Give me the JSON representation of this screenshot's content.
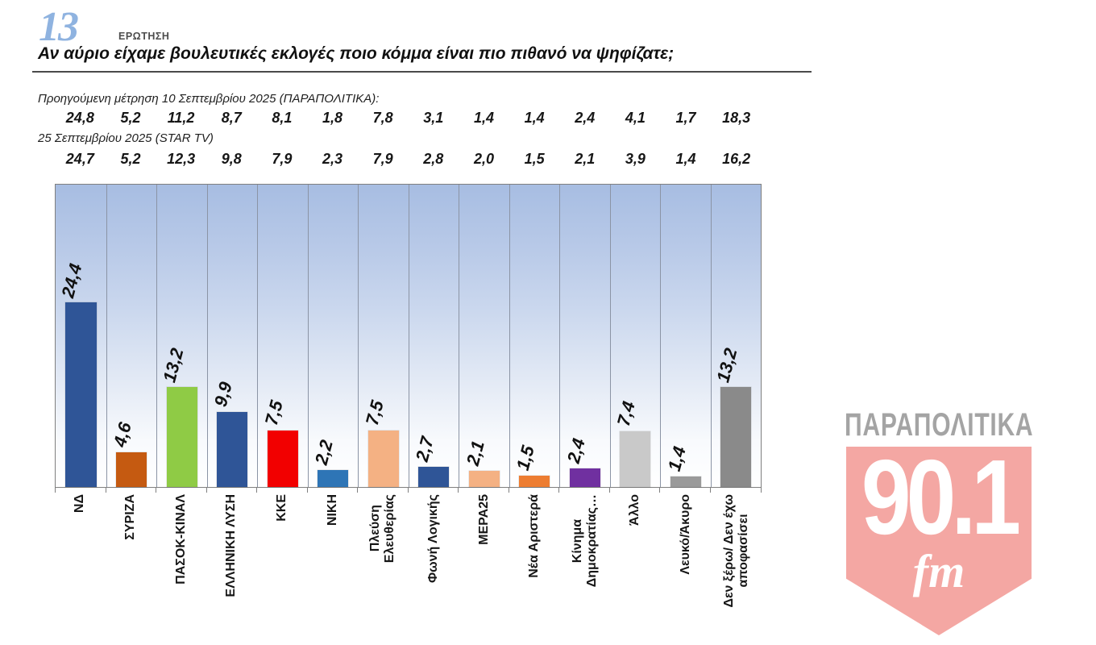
{
  "header": {
    "question_number": "13",
    "question_label": "ΕΡΩΤΗΣΗ",
    "title": "Αν αύριο είχαμε βουλευτικές εκλογές ποιο κόμμα είναι πιο πιθανό να ψηφίζατε;"
  },
  "previous_polls": [
    {
      "label": "Προηγούμενη μέτρηση 10 Σεπτεμβρίου 2025 (ΠΑΡΑΠΟΛΙΤΙΚΑ):",
      "values": [
        "24,8",
        "5,2",
        "11,2",
        "8,7",
        "8,1",
        "1,8",
        "7,8",
        "3,1",
        "1,4",
        "1,4",
        "2,4",
        "4,1",
        "1,7",
        "18,3"
      ]
    },
    {
      "label": "25 Σεπτεμβρίου 2025 (STAR TV)",
      "values": [
        "24,7",
        "5,2",
        "12,3",
        "9,8",
        "7,9",
        "2,3",
        "7,9",
        "2,8",
        "2,0",
        "1,5",
        "2,1",
        "3,9",
        "1,4",
        "16,2"
      ]
    }
  ],
  "chart_data": {
    "type": "bar",
    "title": "Αν αύριο είχαμε βουλευτικές εκλογές ποιο κόμμα είναι πιο πιθανό να ψηφίζατε;",
    "categories": [
      "ΝΔ",
      "ΣΥΡΙΖΑ",
      "ΠΑΣΟΚ-ΚΙΝΑΛ",
      "ΕΛΛΗΝΙΚΗ ΛΥΣΗ",
      "ΚΚΕ",
      "ΝΙΚΗ",
      "Πλεύση\nΕλευθερίας",
      "Φωνή Λογικής",
      "ΜΕΡΑ25",
      "Νέα Αριστερά",
      "Κίνημα\nΔημοκρατίας…",
      "Άλλο",
      "Λευκό/Άκυρο",
      "Δεν ξέρω/ Δεν έχω\nαποφασίσει"
    ],
    "values": [
      24.4,
      4.6,
      13.2,
      9.9,
      7.5,
      2.2,
      7.5,
      2.7,
      2.1,
      1.5,
      2.4,
      7.4,
      1.4,
      13.2
    ],
    "value_labels": [
      "24,4",
      "4,6",
      "13,2",
      "9,9",
      "7,5",
      "2,2",
      "7,5",
      "2,7",
      "2,1",
      "1,5",
      "2,4",
      "7,4",
      "1,4",
      "13,2"
    ],
    "bar_colors": [
      "#2F5597",
      "#C55A11",
      "#8FCB45",
      "#2F5597",
      "#F20000",
      "#2E75B6",
      "#F4B183",
      "#2F5597",
      "#F4B183",
      "#ED7D31",
      "#7030A0",
      "#C9C9C9",
      "#9A9A9A",
      "#8A8A8A"
    ],
    "xlabel": "",
    "ylabel": "",
    "ylim": [
      0,
      40
    ],
    "grid": "vertical-category-separators",
    "legend": "none",
    "plot_background": [
      "#A7BDE2",
      "#FFFFFF"
    ]
  },
  "logo": {
    "brand": "ΠΑΡΑΠΟΛΙΤΙΚΑ",
    "frequency": "90.1",
    "band": "fm",
    "shield_color": "#F4A7A3",
    "brand_color": "#A4A4A4"
  }
}
